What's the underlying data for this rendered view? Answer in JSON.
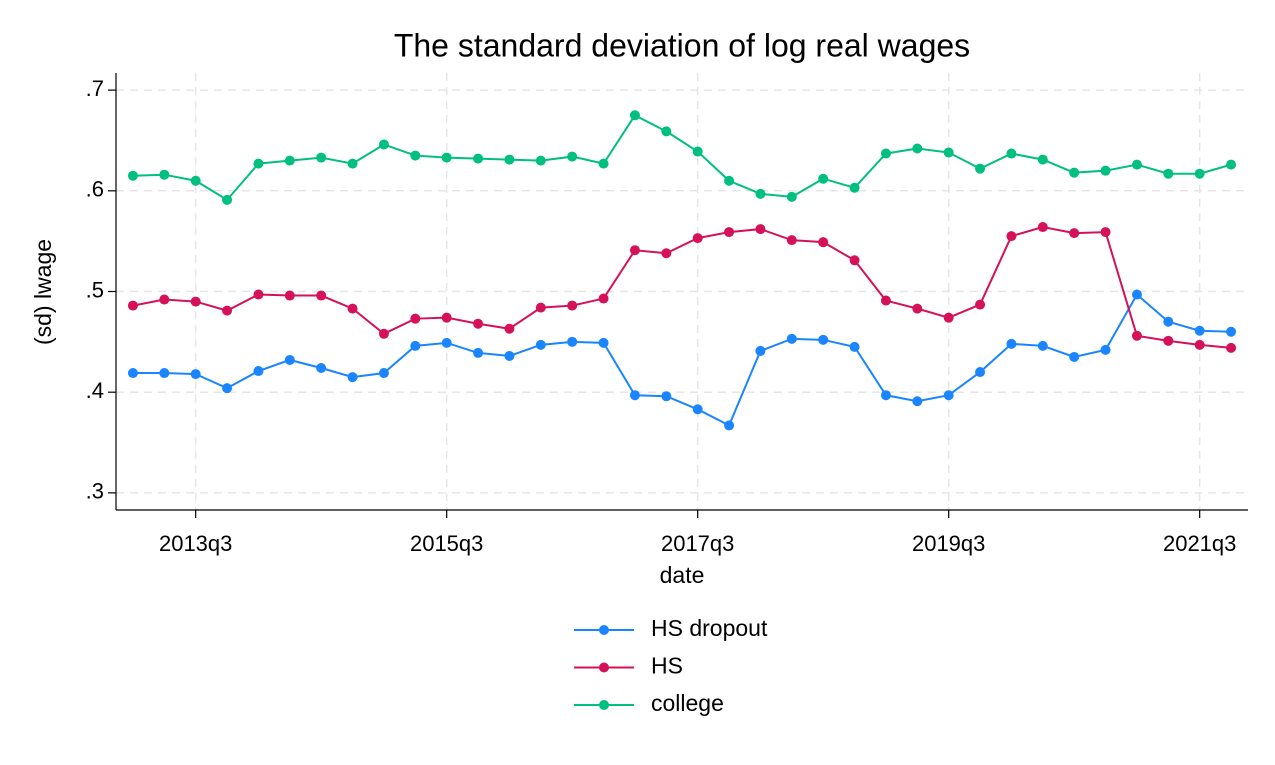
{
  "chart_data": {
    "type": "line",
    "title": "The standard deviation of log real wages",
    "x_label": "date",
    "y_label": "(sd) lwage",
    "x": [
      "2013q1",
      "2013q2",
      "2013q3",
      "2013q4",
      "2014q1",
      "2014q2",
      "2014q3",
      "2014q4",
      "2015q1",
      "2015q2",
      "2015q3",
      "2015q4",
      "2016q1",
      "2016q2",
      "2016q3",
      "2016q4",
      "2017q1",
      "2017q2",
      "2017q3",
      "2017q4",
      "2018q1",
      "2018q2",
      "2018q3",
      "2018q4",
      "2019q1",
      "2019q2",
      "2019q3",
      "2019q4",
      "2020q1",
      "2020q2",
      "2020q3",
      "2020q4",
      "2021q1",
      "2021q2",
      "2021q3",
      "2021q4"
    ],
    "xticks": [
      "2013q3",
      "2015q3",
      "2017q3",
      "2019q3",
      "2021q3"
    ],
    "ylim": [
      0.283,
      0.717
    ],
    "yticks": [
      {
        "value": 0.3,
        "label": ".3"
      },
      {
        "value": 0.4,
        "label": ".4"
      },
      {
        "value": 0.5,
        "label": ".5"
      },
      {
        "value": 0.6,
        "label": ".6"
      },
      {
        "value": 0.7,
        "label": ".7"
      }
    ],
    "grid": true,
    "legend": "bottom",
    "series": [
      {
        "name": "HS dropout",
        "color": "#1a85ff",
        "values": [
          0.419,
          0.419,
          0.418,
          0.404,
          0.421,
          0.432,
          0.424,
          0.415,
          0.419,
          0.446,
          0.449,
          0.439,
          0.436,
          0.447,
          0.45,
          0.449,
          0.397,
          0.396,
          0.383,
          0.367,
          0.441,
          0.453,
          0.452,
          0.445,
          0.397,
          0.391,
          0.397,
          0.42,
          0.448,
          0.446,
          0.435,
          0.442,
          0.497,
          0.47,
          0.461,
          0.46
        ]
      },
      {
        "name": "HS",
        "color": "#d41159",
        "values": [
          0.486,
          0.492,
          0.49,
          0.481,
          0.497,
          0.496,
          0.496,
          0.483,
          0.458,
          0.473,
          0.474,
          0.468,
          0.463,
          0.484,
          0.486,
          0.493,
          0.541,
          0.538,
          0.553,
          0.559,
          0.562,
          0.551,
          0.549,
          0.531,
          0.491,
          0.483,
          0.474,
          0.487,
          0.555,
          0.564,
          0.558,
          0.559,
          0.456,
          0.451,
          0.447,
          0.444
        ]
      },
      {
        "name": "college",
        "color": "#00bf7f",
        "values": [
          0.615,
          0.616,
          0.61,
          0.591,
          0.627,
          0.63,
          0.633,
          0.627,
          0.646,
          0.635,
          0.633,
          0.632,
          0.631,
          0.63,
          0.634,
          0.627,
          0.675,
          0.659,
          0.639,
          0.61,
          0.597,
          0.594,
          0.612,
          0.603,
          0.637,
          0.642,
          0.638,
          0.622,
          0.637,
          0.631,
          0.618,
          0.62,
          0.626,
          0.617,
          0.617,
          0.626
        ]
      }
    ]
  }
}
